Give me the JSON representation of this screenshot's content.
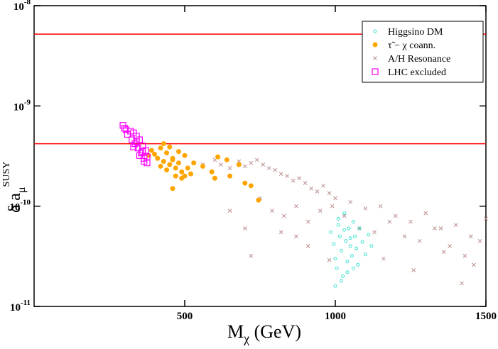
{
  "chart_data": {
    "type": "scatter",
    "x_label": {
      "main": "M",
      "sub": "χ",
      "rest": " (GeV)"
    },
    "y_label": {
      "main": "δ a",
      "sub": "μ",
      "sup": "SUSY"
    },
    "xlim": [
      0,
      1500
    ],
    "xticks": [
      500,
      1000,
      1500
    ],
    "ylim": [
      1e-11,
      1e-08
    ],
    "log_y": true,
    "yticks": [
      {
        "value": 1e-11,
        "label": "10^-11"
      },
      {
        "value": 1e-10,
        "label": "10^-10"
      },
      {
        "value": 1e-09,
        "label": "10^-9"
      },
      {
        "value": 1e-08,
        "label": "10^-8"
      }
    ],
    "hlines": [
      5.2e-09,
      4.2e-10
    ],
    "hline_color": "#ff0000",
    "legend": "upper right",
    "series": [
      {
        "name": "Higgsino DM",
        "color": "#40e0d0",
        "marker": "circle-open",
        "x": [
          985,
          995,
          1000,
          1005,
          1010,
          1015,
          1020,
          1025,
          1030,
          1035,
          1040,
          1045,
          1050,
          1055,
          1060,
          1065,
          1070,
          1075,
          1080,
          1090,
          1100,
          1110,
          1120,
          1000,
          1020,
          1040,
          1060,
          1010,
          1030,
          1050
        ],
        "y": [
          5.5e-11,
          4.2e-11,
          3e-11,
          2.4e-11,
          6.5e-11,
          5e-11,
          3.6e-11,
          2e-11,
          8.5e-11,
          4.5e-11,
          2.8e-11,
          6e-11,
          4e-11,
          3.2e-11,
          7e-11,
          5e-11,
          3.8e-11,
          2.6e-11,
          6e-11,
          4.4e-11,
          3.3e-11,
          5.2e-11,
          4e-11,
          1.6e-11,
          1.8e-11,
          2.2e-11,
          2.4e-11,
          7.5e-11,
          5.8e-11,
          4.8e-11
        ]
      },
      {
        "name": "τ̃ − χ  coann.",
        "color": "#ffa500",
        "marker": "circle",
        "x": [
          380,
          390,
          400,
          410,
          420,
          430,
          440,
          450,
          460,
          470,
          480,
          490,
          500,
          510,
          520,
          430,
          450,
          470,
          490,
          420,
          440,
          460,
          480,
          500,
          530,
          560,
          590,
          610,
          640,
          680,
          700,
          720,
          650,
          600,
          745,
          460
        ],
        "y": [
          3.2e-10,
          3.6e-10,
          3.3e-10,
          3e-10,
          3.8e-10,
          2.8e-10,
          3.4e-10,
          2.6e-10,
          3e-10,
          2.4e-10,
          2.7e-10,
          2.2e-10,
          2e-10,
          2.4e-10,
          2.1e-10,
          4.2e-10,
          3.9e-10,
          2e-10,
          1.9e-10,
          2.5e-10,
          2.3e-10,
          2.9e-10,
          3.5e-10,
          3.2e-10,
          2.7e-10,
          2.5e-10,
          2.2e-10,
          3.1e-10,
          2.9e-10,
          2.6e-10,
          1.7e-10,
          1.6e-10,
          2e-10,
          1.9e-10,
          1.15e-10,
          1.5e-10
        ]
      },
      {
        "name": "A/H Resonance",
        "color": "#bc8f8f",
        "marker": "x",
        "x": [
          560,
          600,
          620,
          650,
          680,
          700,
          720,
          740,
          760,
          780,
          800,
          820,
          840,
          860,
          880,
          900,
          920,
          940,
          960,
          980,
          1000,
          1050,
          1100,
          1150,
          1200,
          1250,
          1300,
          1350,
          1400,
          1450,
          1500,
          750,
          790,
          830,
          870,
          910,
          950,
          990,
          1030,
          1080,
          1130,
          1180,
          1230,
          1280,
          1330,
          1380,
          1430,
          1480,
          700,
          650,
          870,
          910,
          1160,
          1260,
          1360,
          1460,
          1420,
          720,
          820,
          980
        ],
        "y": [
          2.6e-10,
          2.9e-10,
          2.6e-10,
          2.4e-10,
          2.8e-10,
          2.5e-10,
          2.7e-10,
          2.9e-10,
          2.6e-10,
          2.4e-10,
          2.3e-10,
          2.1e-10,
          2e-10,
          1.8e-10,
          1.9e-10,
          1.7e-10,
          1.5e-10,
          1.4e-10,
          1.6e-10,
          1.35e-10,
          1.2e-10,
          1.1e-10,
          9.5e-11,
          1e-10,
          8e-11,
          7e-11,
          8.5e-11,
          6e-11,
          6.5e-11,
          5e-11,
          7.5e-11,
          1.2e-10,
          9e-11,
          8e-11,
          1e-10,
          7e-11,
          9e-11,
          1e-10,
          8e-11,
          6e-11,
          5.5e-11,
          7e-11,
          5e-11,
          4.5e-11,
          6e-11,
          4e-11,
          3.2e-11,
          4.5e-11,
          6e-11,
          9e-11,
          5e-11,
          4e-11,
          3e-11,
          2.3e-11,
          3.5e-11,
          2.6e-11,
          1.7e-11,
          3.2e-11,
          5.5e-11,
          2.9e-11
        ]
      },
      {
        "name": "LHC excluded",
        "color": "#ff00ff",
        "marker": "square-open",
        "x": [
          295,
          305,
          310,
          320,
          325,
          330,
          335,
          340,
          345,
          350,
          355,
          360,
          365,
          370,
          375,
          330,
          350,
          365,
          300,
          340,
          360,
          375
        ],
        "y": [
          6.4e-10,
          5.8e-10,
          5.2e-10,
          5.6e-10,
          4.6e-10,
          5.4e-10,
          4.2e-10,
          5e-10,
          3.8e-10,
          4.6e-10,
          3.4e-10,
          4e-10,
          3e-10,
          3.6e-10,
          2.7e-10,
          3.9e-10,
          3.2e-10,
          2.8e-10,
          6e-10,
          4.4e-10,
          3.5e-10,
          3.1e-10
        ]
      }
    ]
  }
}
